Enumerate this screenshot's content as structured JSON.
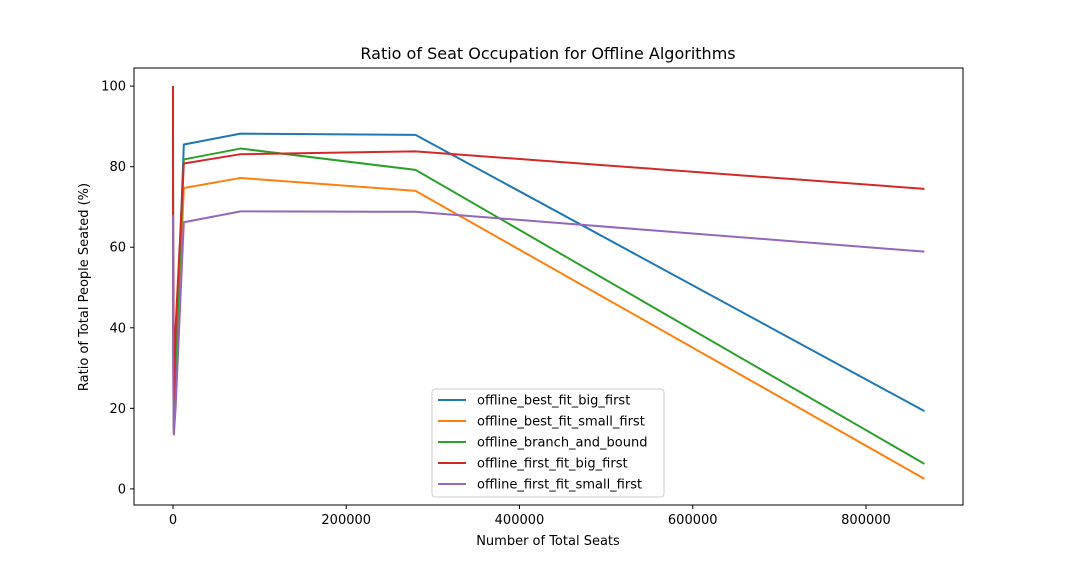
{
  "chart_data": {
    "type": "line",
    "title": "Ratio of Seat Occupation for Offline Algorithms",
    "xlabel": "Number of Total Seats",
    "ylabel": "Ratio of Total People Seated (%)",
    "xlim": [
      -45000,
      912000
    ],
    "ylim": [
      -4,
      104.5
    ],
    "xticks": [
      0,
      200000,
      400000,
      600000,
      800000
    ],
    "xtick_labels": [
      "0",
      "200000",
      "400000",
      "600000",
      "800000"
    ],
    "yticks": [
      0,
      20,
      40,
      60,
      80,
      100
    ],
    "ytick_labels": [
      "0",
      "20",
      "40",
      "60",
      "80",
      "100"
    ],
    "grid": false,
    "legend_position": "bottom-center",
    "series": [
      {
        "name": "offline_best_fit_big_first",
        "color": "#1f77b4",
        "points": [
          [
            0,
            100
          ],
          [
            50,
            90
          ],
          [
            200,
            55
          ],
          [
            1000,
            14
          ],
          [
            3000,
            30
          ],
          [
            12500,
            85.5
          ],
          [
            78000,
            88.2
          ],
          [
            280000,
            87.9
          ],
          [
            867500,
            19.3
          ]
        ]
      },
      {
        "name": "offline_best_fit_small_first",
        "color": "#ff7f0e",
        "points": [
          [
            0,
            100
          ],
          [
            50,
            70
          ],
          [
            200,
            40
          ],
          [
            1000,
            14
          ],
          [
            3000,
            25
          ],
          [
            12500,
            74.7
          ],
          [
            78000,
            77.2
          ],
          [
            280000,
            74
          ],
          [
            867500,
            2.5
          ]
        ]
      },
      {
        "name": "offline_branch_and_bound",
        "color": "#2ca02c",
        "points": [
          [
            0,
            100
          ],
          [
            50,
            80
          ],
          [
            200,
            45
          ],
          [
            1000,
            14
          ],
          [
            3000,
            30
          ],
          [
            12500,
            81.8
          ],
          [
            78000,
            84.5
          ],
          [
            280000,
            79.2
          ],
          [
            867500,
            6.2
          ]
        ]
      },
      {
        "name": "offline_first_fit_big_first",
        "color": "#d62728",
        "points": [
          [
            0,
            100
          ],
          [
            50,
            80
          ],
          [
            200,
            65
          ],
          [
            1000,
            22
          ],
          [
            3000,
            40
          ],
          [
            12500,
            80.8
          ],
          [
            78000,
            83.1
          ],
          [
            280000,
            83.8
          ],
          [
            867500,
            74.5
          ]
        ]
      },
      {
        "name": "offline_first_fit_small_first",
        "color": "#9467bd",
        "points": [
          [
            0,
            68
          ],
          [
            50,
            50
          ],
          [
            200,
            30
          ],
          [
            1000,
            13.5
          ],
          [
            3000,
            20
          ],
          [
            12500,
            66.2
          ],
          [
            78000,
            68.9
          ],
          [
            280000,
            68.8
          ],
          [
            867500,
            58.9
          ]
        ]
      }
    ]
  }
}
